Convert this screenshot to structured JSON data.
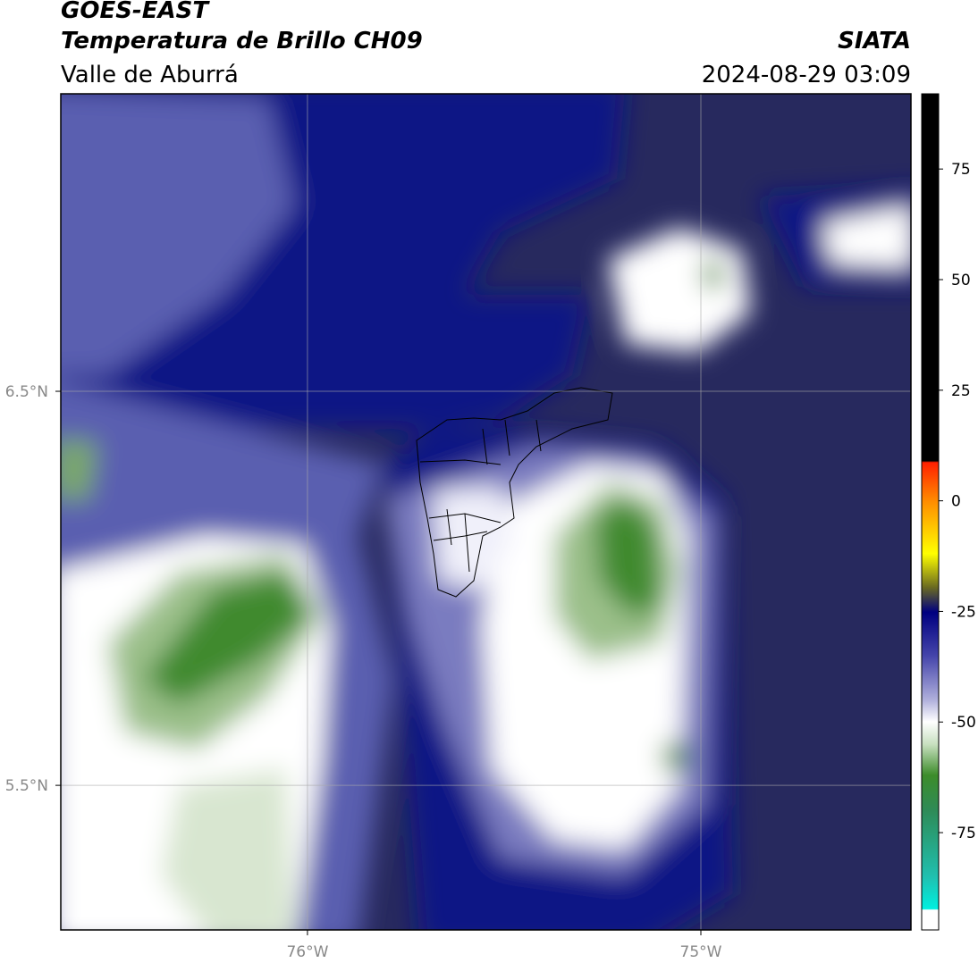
{
  "header": {
    "source": "GOES-EAST",
    "title": "Temperatura de Brillo CH09",
    "agency": "SIATA",
    "region": "Valle de Aburrá",
    "datetime": "2024-08-29 03:09"
  },
  "map": {
    "xlim": [
      -76.627,
      -74.466
    ],
    "ylim": [
      5.133,
      7.255
    ],
    "xticks": [
      {
        "value": -76,
        "label": "76°W"
      },
      {
        "value": -75,
        "label": "75°W"
      }
    ],
    "yticks": [
      {
        "value": 6.5,
        "label": "6.5°N"
      },
      {
        "value": 5.5,
        "label": "5.5°N"
      }
    ],
    "grid": true
  },
  "colorbar": {
    "lim": [
      -97,
      92
    ],
    "ticks": [
      75,
      50,
      25,
      0,
      -25,
      -50,
      -75
    ]
  }
}
